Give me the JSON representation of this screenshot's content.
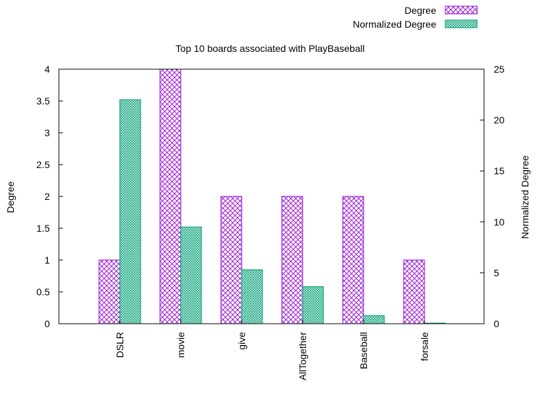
{
  "chart_data": {
    "type": "bar",
    "title": "Top 10 boards associated with PlayBaseball",
    "categories": [
      "DSLR",
      "movie",
      "give",
      "AllTogether",
      "Baseball",
      "forsale"
    ],
    "series": [
      {
        "name": "Degree",
        "axis": "left",
        "color": "#9400d3",
        "pattern": "crosshatch",
        "values": [
          1,
          4,
          2,
          2,
          2,
          1
        ]
      },
      {
        "name": "Normalized Degree",
        "axis": "right",
        "color": "#009e73",
        "pattern": "dense-crosshatch",
        "values": [
          22,
          9.5,
          5.3,
          3.65,
          0.8,
          0.06
        ]
      }
    ],
    "ylabel": "Degree",
    "y2label": "Normalized Degree",
    "xlabel": "",
    "ylim": [
      0,
      4
    ],
    "y2lim": [
      0,
      25
    ],
    "yticks": [
      "0",
      "0.5",
      "1",
      "1.5",
      "2",
      "2.5",
      "3",
      "3.5",
      "4"
    ],
    "y2ticks": [
      "0",
      "5",
      "10",
      "15",
      "20",
      "25"
    ],
    "grid": false,
    "legend_position": "top-right",
    "x_tick_rotation": "vertical"
  }
}
